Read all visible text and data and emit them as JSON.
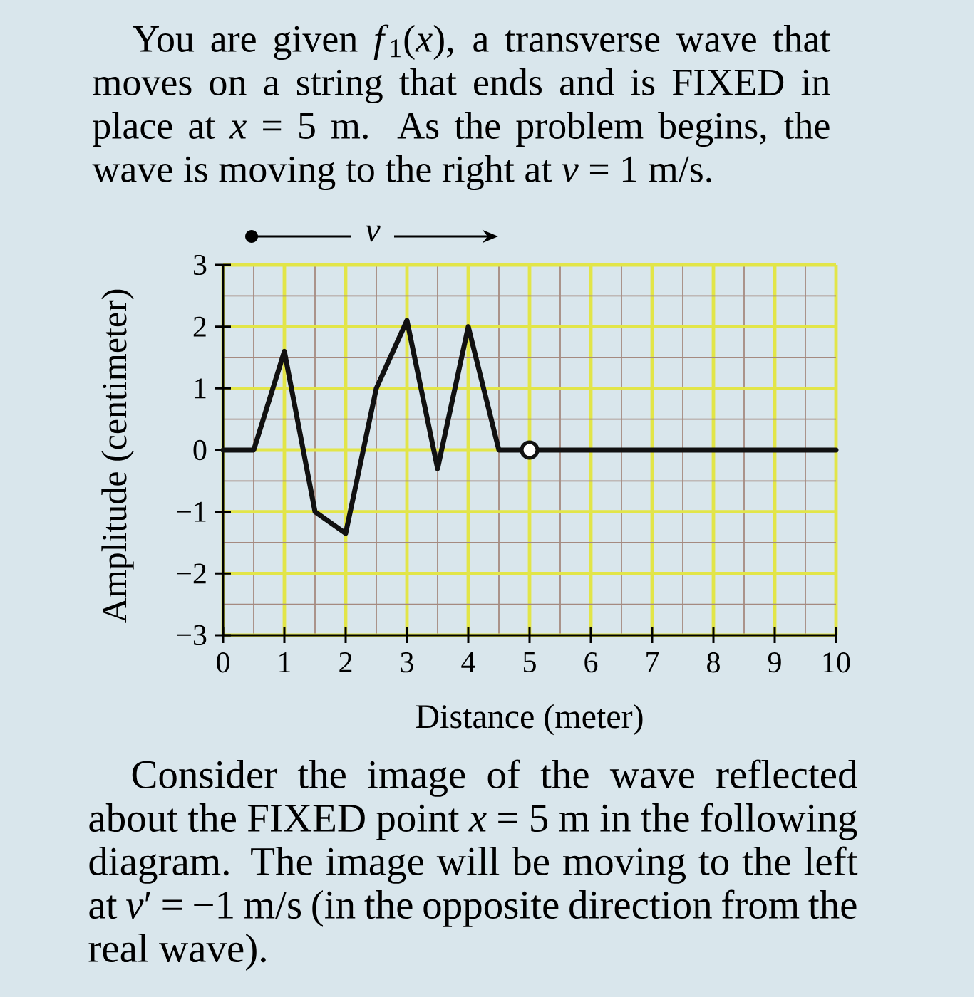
{
  "chart_data": {
    "type": "line",
    "title": "You are given *f*$_{1}$(*x*), a transverse wave that moves on a string that ends and is FIXED in place at *x* = 5 m. As the problem begins, the wave is moving to the right at *v* = 1 m/s.",
    "xlabel": "Distance (meter)",
    "ylabel": "Amplitude (centimeter)",
    "annotations": [
      "v",
      "Consider the image of the wave reflected about the FIXED point *x* = 5 m in the following diagram. The image will be moving to the left at *v*′ = −1 m/s (in the opposite direction from the real wave)."
    ],
    "xlim": [
      0,
      10
    ],
    "ylim": [
      -3,
      3
    ],
    "xticks": [
      0,
      1,
      2,
      3,
      4,
      5,
      6,
      7,
      8,
      9,
      10
    ],
    "yticks": [
      {
        "value": -3,
        "label": "−3"
      },
      {
        "value": -2,
        "label": "−2"
      },
      {
        "value": -1,
        "label": "−1"
      },
      0,
      1,
      2,
      3
    ],
    "grid": true,
    "series": [
      {
        "color": "#111111",
        "marker": "none",
        "line_style": "solid",
        "x": [
          0,
          0.5,
          1,
          1.5,
          2,
          2.5,
          3,
          3.5,
          4,
          4.5,
          5,
          10
        ],
        "values": [
          0,
          0,
          1.6,
          -1,
          -1.35,
          1,
          2.1,
          -0.3,
          2,
          0,
          0,
          0
        ]
      },
      {
        "type": "scatter",
        "color": "#111111",
        "marker": "circle",
        "x": [
          5
        ],
        "values": [
          0
        ]
      }
    ]
  }
}
